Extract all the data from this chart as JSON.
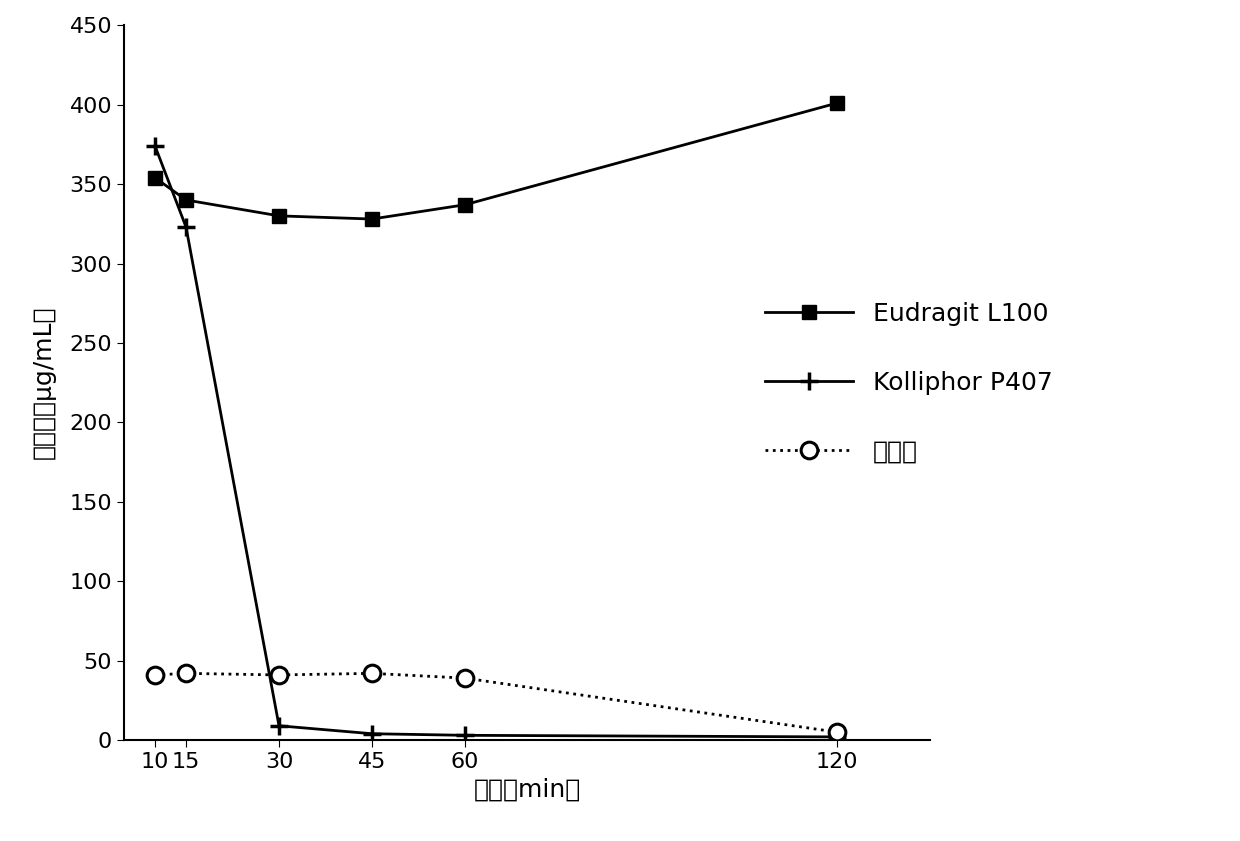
{
  "x": [
    10,
    15,
    30,
    45,
    60,
    120
  ],
  "eudragit_y": [
    354,
    340,
    330,
    328,
    337,
    401
  ],
  "kolliphor_y": [
    374,
    323,
    9,
    4,
    3,
    2
  ],
  "control_y": [
    41,
    42,
    41,
    42,
    39,
    5
  ],
  "xlabel": "时间（min）",
  "ylabel": "溶解度（μg/mL）",
  "ylim": [
    0,
    450
  ],
  "yticks": [
    0,
    50,
    100,
    150,
    200,
    250,
    300,
    350,
    400,
    450
  ],
  "xticks": [
    10,
    15,
    30,
    45,
    60,
    120
  ],
  "legend_eudragit": "Eudragit L100",
  "legend_kolliphor": "Kolliphor P407",
  "legend_control": "对照组",
  "line_color": "#000000",
  "background_color": "#ffffff",
  "linewidth": 2.0,
  "markersize_square": 10,
  "markersize_plus": 13,
  "markersize_circle": 12
}
